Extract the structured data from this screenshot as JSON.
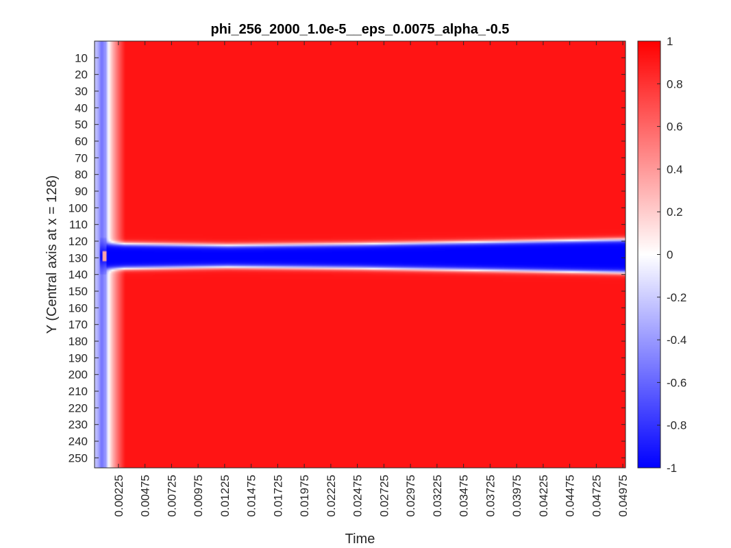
{
  "chart_data": {
    "type": "heatmap",
    "title": "phi_256_2000_1.0e-5__eps_0.0075_alpha_-0.5",
    "xlabel": "Time",
    "ylabel": "Y (Central axis at x = 128)",
    "x_range": [
      0,
      0.05
    ],
    "y_range": [
      0,
      256
    ],
    "x_ticks": [
      "0.00225",
      "0.00475",
      "0.00725",
      "0.00975",
      "0.01225",
      "0.01475",
      "0.01725",
      "0.01975",
      "0.02225",
      "0.02475",
      "0.02725",
      "0.02975",
      "0.03225",
      "0.03475",
      "0.03725",
      "0.03975",
      "0.04225",
      "0.04475",
      "0.04725",
      "0.04975"
    ],
    "y_ticks": [
      "10",
      "20",
      "30",
      "40",
      "50",
      "60",
      "70",
      "80",
      "90",
      "100",
      "110",
      "120",
      "130",
      "140",
      "150",
      "160",
      "170",
      "180",
      "190",
      "200",
      "210",
      "220",
      "230",
      "240",
      "250"
    ],
    "colorbar": {
      "min": -1,
      "max": 1,
      "ticks": [
        "1",
        "0.8",
        "0.6",
        "0.4",
        "0.2",
        "0",
        "-0.2",
        "-0.4",
        "-0.6",
        "-0.8",
        "-1"
      ],
      "colormap": [
        "#0000ff",
        "#ffffff",
        "#ff0000"
      ]
    },
    "field": {
      "bulk_value": 0.92,
      "initial_value": -0.4,
      "initial_time_end": 0.0011,
      "band_center_y": 129,
      "band_value": -1,
      "band_half_width": [
        {
          "t": 0.0016,
          "w": 7.5
        },
        {
          "t": 0.0125,
          "w": 6.5
        },
        {
          "t": 0.025,
          "w": 7.3
        },
        {
          "t": 0.0375,
          "w": 8.6
        },
        {
          "t": 0.05,
          "w": 10.0
        }
      ]
    }
  }
}
